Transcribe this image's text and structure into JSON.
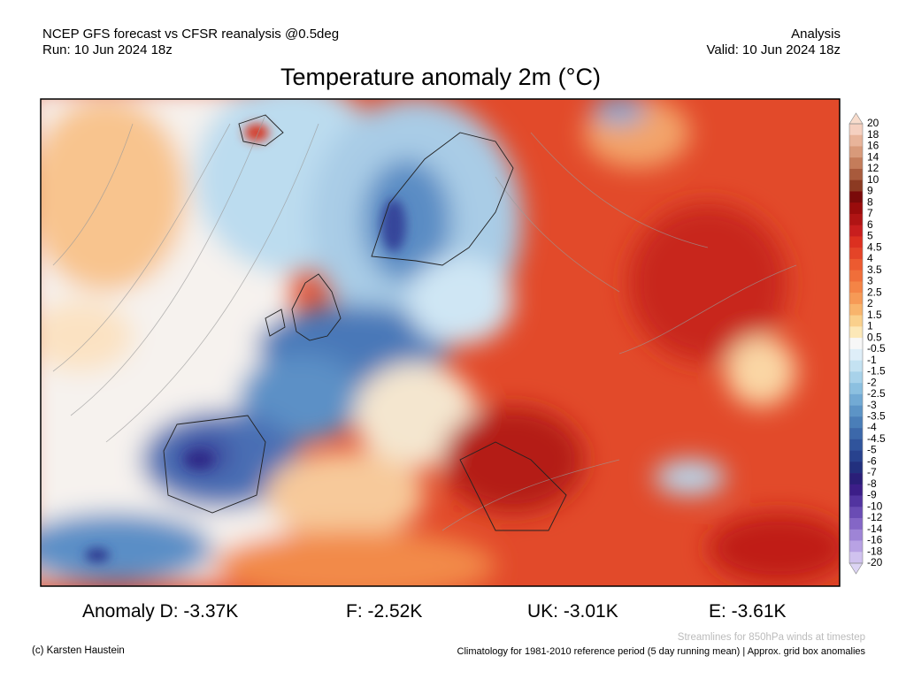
{
  "header": {
    "left": [
      "NCEP GFS forecast vs CFSR reanalysis @0.5deg",
      "Run: 10 Jun 2024 18z"
    ],
    "right": [
      "Analysis",
      "Valid: 10 Jun 2024 18z"
    ],
    "title": "Temperature anomaly 2m (°C)"
  },
  "colorbar": {
    "labels": [
      20,
      18,
      16,
      14,
      12,
      10,
      9,
      8,
      7,
      6,
      5,
      4.5,
      4,
      3.5,
      3,
      2.5,
      2,
      1.5,
      1,
      0.5,
      -0.5,
      -1,
      -1.5,
      -2,
      -2.5,
      -3,
      -3.5,
      -4,
      -4.5,
      -5,
      -6,
      -7,
      -8,
      -9,
      -10,
      -12,
      -14,
      -16,
      -18,
      -20
    ],
    "colors": [
      "#f5d0c0",
      "#e8b49a",
      "#d89a7a",
      "#c47c5a",
      "#a85a3c",
      "#8c3a22",
      "#7a0a0a",
      "#9a0c0c",
      "#b01414",
      "#c81e1e",
      "#dc3020",
      "#e44428",
      "#ec5a30",
      "#f06e3a",
      "#f48446",
      "#f69a56",
      "#f8b46c",
      "#fad08c",
      "#fce8b8",
      "#f7f7f7",
      "#deeef8",
      "#c4e2f2",
      "#a8d2ea",
      "#8cc0e0",
      "#72aad4",
      "#5c94c6",
      "#4a7eb8",
      "#3c68aa",
      "#30549c",
      "#28428e",
      "#22307e",
      "#2a1e78",
      "#3c1e88",
      "#5234a0",
      "#6a4cb4",
      "#8466c6",
      "#9e84d6",
      "#b8a2e4",
      "#d0c2ef"
    ],
    "extend_colors": [
      "#f8dccc",
      "#dcd4f4"
    ]
  },
  "stats": [
    "Anomaly D: -3.37K",
    "F: -2.52K",
    "UK: -3.01K",
    "E: -3.61K"
  ],
  "footer": {
    "streamlines": "Streamlines for 850hPa winds at timestep",
    "copyright": "(c) Karsten Haustein",
    "climatology": "Climatology for 1981-2010 reference period (5 day running mean) | Approx. grid box anomalies"
  }
}
